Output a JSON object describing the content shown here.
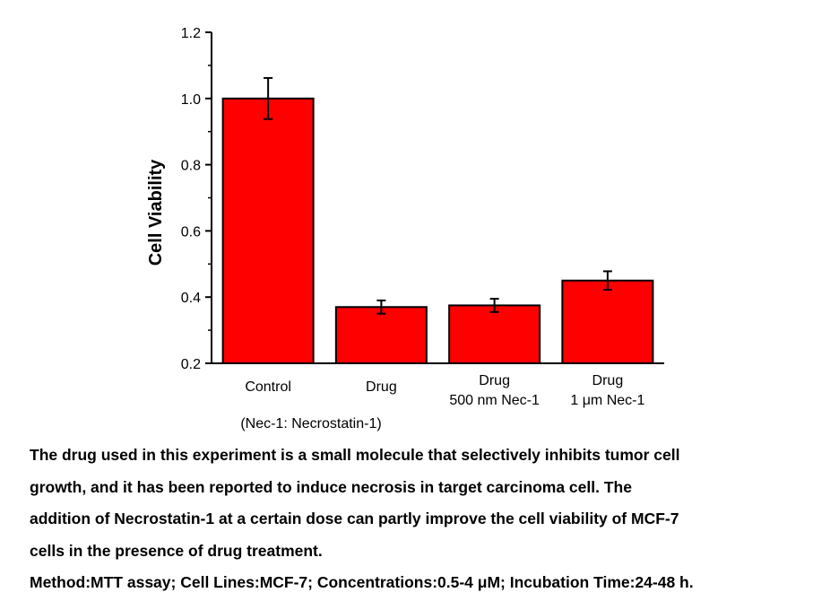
{
  "chart_data": {
    "type": "bar",
    "ylabel": "Cell Viability",
    "xlabel": "",
    "ylim": [
      0.2,
      1.2
    ],
    "yticks": [
      "0.2",
      "0.4",
      "0.6",
      "0.8",
      "1.0",
      "1.2"
    ],
    "ytick_values": [
      0.2,
      0.4,
      0.6,
      0.8,
      1.0,
      1.2
    ],
    "categories": [
      [
        "Control"
      ],
      [
        "Drug"
      ],
      [
        "Drug",
        "500 nm Nec-1"
      ],
      [
        "Drug",
        "1 μm Nec-1"
      ]
    ],
    "values": [
      1.0,
      0.37,
      0.375,
      0.45
    ],
    "errors": [
      0.062,
      0.02,
      0.02,
      0.028
    ],
    "bar_color": "#ff0000",
    "note": "(Nec-1: Necrostatin-1)",
    "grid": false,
    "legend": "none"
  },
  "caption": {
    "lines": [
      "The drug used in this experiment is a small molecule that selectively inhibits tumor cell",
      "growth, and it has been reported to induce necrosis in target carcinoma cell. The",
      "addition of Necrostatin-1 at a certain dose can partly improve the cell viability of MCF-7",
      "cells in the presence of drug treatment."
    ],
    "method": "Method:MTT assay; Cell Lines:MCF-7; Concentrations:0.5-4 μM; Incubation Time:24-48 h."
  }
}
